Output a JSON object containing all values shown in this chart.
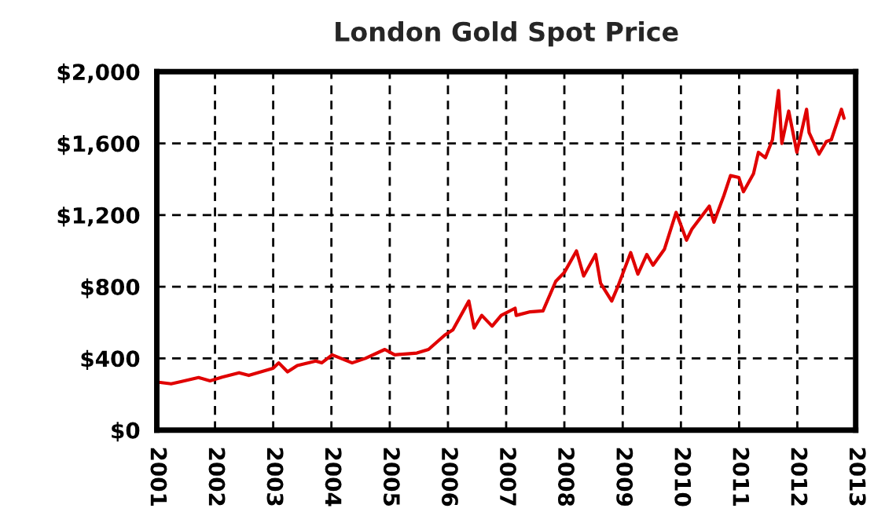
{
  "chart_data": {
    "type": "line",
    "title": "London Gold Spot Price",
    "x": [
      "2001-01-02",
      "2001-04-01",
      "2001-06-01",
      "2001-09-20",
      "2001-12-01",
      "2002-02-15",
      "2002-06-01",
      "2002-08-01",
      "2002-12-31",
      "2003-02-05",
      "2003-04-01",
      "2003-06-01",
      "2003-09-25",
      "2003-11-01",
      "2004-01-06",
      "2004-03-01",
      "2004-05-10",
      "2004-08-01",
      "2004-12-01",
      "2005-02-01",
      "2005-06-20",
      "2005-09-01",
      "2005-12-12",
      "2006-02-01",
      "2006-05-12",
      "2006-06-14",
      "2006-08-01",
      "2006-10-05",
      "2006-12-01",
      "2007-02-26",
      "2007-03-05",
      "2007-06-01",
      "2007-08-20",
      "2007-11-08",
      "2008-01-01",
      "2008-03-17",
      "2008-05-01",
      "2008-07-15",
      "2008-08-15",
      "2008-10-24",
      "2008-12-01",
      "2009-02-20",
      "2009-04-06",
      "2009-06-01",
      "2009-07-10",
      "2009-09-20",
      "2009-12-02",
      "2010-02-05",
      "2010-03-10",
      "2010-06-28",
      "2010-07-27",
      "2010-09-28",
      "2010-11-08",
      "2010-12-30",
      "2011-01-28",
      "2011-04-01",
      "2011-05-02",
      "2011-06-15",
      "2011-07-29",
      "2011-09-05",
      "2011-09-26",
      "2011-11-08",
      "2011-12-29",
      "2012-02-28",
      "2012-03-15",
      "2012-05-16",
      "2012-07-01",
      "2012-08-01",
      "2012-10-04",
      "2012-10-20"
    ],
    "values": [
      268,
      258,
      270,
      293,
      275,
      295,
      320,
      305,
      345,
      375,
      325,
      360,
      385,
      375,
      420,
      400,
      375,
      400,
      450,
      420,
      430,
      450,
      530,
      560,
      720,
      570,
      640,
      580,
      640,
      680,
      640,
      660,
      665,
      830,
      880,
      1000,
      860,
      980,
      820,
      720,
      800,
      990,
      870,
      980,
      920,
      1010,
      1215,
      1060,
      1120,
      1250,
      1160,
      1310,
      1420,
      1410,
      1330,
      1430,
      1550,
      1520,
      1620,
      1895,
      1600,
      1780,
      1550,
      1790,
      1660,
      1540,
      1610,
      1620,
      1790,
      1740
    ],
    "color": "#e00000",
    "xlim": [
      "2001-01-01",
      "2013-01-01"
    ],
    "xticks": [
      "2001",
      "2002",
      "2003",
      "2004",
      "2005",
      "2006",
      "2007",
      "2008",
      "2009",
      "2010",
      "2011",
      "2012",
      "2013"
    ],
    "ylim": [
      0,
      2000
    ],
    "yticks": [
      {
        "value": 0,
        "label": "$0"
      },
      {
        "value": 400,
        "label": "$400"
      },
      {
        "value": 800,
        "label": "$800"
      },
      {
        "value": 1200,
        "label": "$1,200"
      },
      {
        "value": 1600,
        "label": "$1,600"
      },
      {
        "value": 2000,
        "label": "$2,000"
      }
    ],
    "grid": true,
    "line_style": "solid",
    "marker": "none"
  }
}
